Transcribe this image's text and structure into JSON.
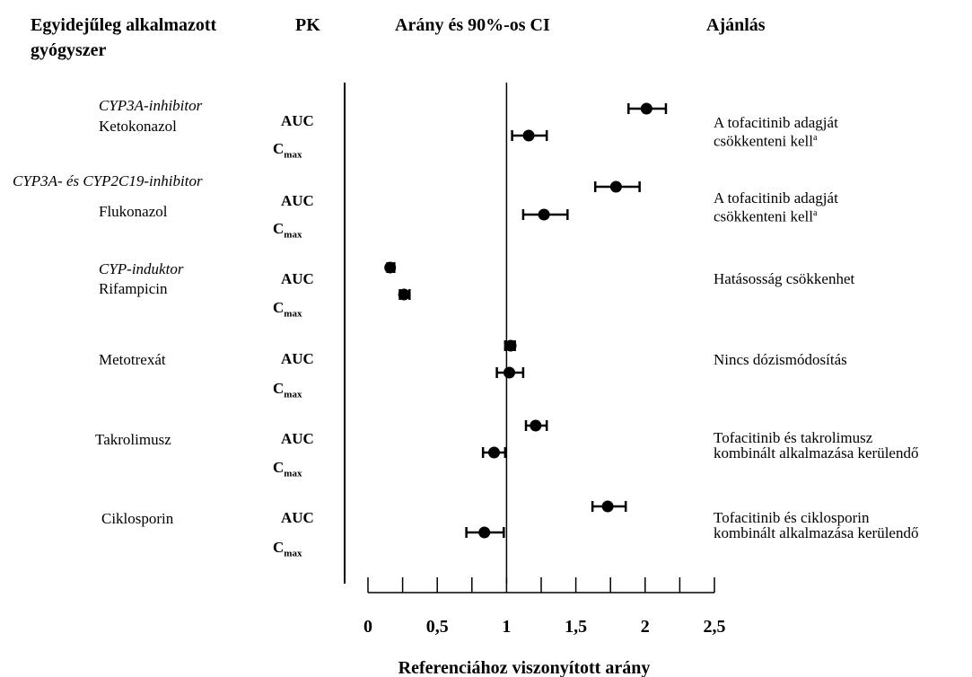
{
  "header": {
    "col_drug": "Egyidejűleg alkalmazott",
    "col_drug2": "gyógyszer",
    "col_pk": "PK",
    "col_ratio": "Arány és 90%-os CI",
    "col_rec": "Ajánlás"
  },
  "rows": [
    {
      "inhibitor": "CYP3A-inhibitor",
      "drug": "Ketokonazol",
      "recommendation": "A tofacitinib adagját\ncsökkenteni kell",
      "footnote": "a"
    },
    {
      "inhibitor": "CYP3A- és CYP2C19-inhibitor",
      "drug": "Flukonazol",
      "recommendation": "A tofacitinib adagját\ncsökkenteni kell",
      "footnote": "a"
    },
    {
      "inhibitor": "CYP-induktor",
      "drug": "Rifampicin",
      "recommendation": "Hatásosság csökkenhet",
      "footnote": ""
    },
    {
      "inhibitor": "",
      "drug": "Metotrexát",
      "recommendation": "Nincs dózismódosítás",
      "footnote": ""
    },
    {
      "inhibitor": "",
      "drug": "Takrolimusz",
      "recommendation": "Tofacitinib és takrolimusz\nkombinált alkalmazása kerülendő",
      "footnote": ""
    },
    {
      "inhibitor": "",
      "drug": "Ciklosporin",
      "recommendation": "Tofacitinib és ciklosporin\nkombinált alkalmazása kerülendő",
      "footnote": ""
    }
  ],
  "pk_labels": {
    "auc": "AUC",
    "cmax_base": "C",
    "cmax_sub": "max"
  },
  "chart_data": {
    "type": "scatter",
    "xlabel": "Referenciához viszonyított arány",
    "xlim": [
      0,
      2.5
    ],
    "xticks": [
      0,
      0.5,
      1,
      1.5,
      2,
      2.5
    ],
    "xtick_labels": [
      "0",
      "0,5",
      "1",
      "1,5",
      "2",
      "2,5"
    ],
    "reference_line": 1,
    "points": [
      {
        "drug": "Ketokonazol",
        "param": "AUC",
        "ratio": 2.01,
        "lo": 1.88,
        "hi": 2.15
      },
      {
        "drug": "Ketokonazol",
        "param": "Cmax",
        "ratio": 1.16,
        "lo": 1.04,
        "hi": 1.29
      },
      {
        "drug": "Flukonazol",
        "param": "AUC",
        "ratio": 1.79,
        "lo": 1.64,
        "hi": 1.96
      },
      {
        "drug": "Flukonazol",
        "param": "Cmax",
        "ratio": 1.27,
        "lo": 1.12,
        "hi": 1.44
      },
      {
        "drug": "Rifampicin",
        "param": "AUC",
        "ratio": 0.16,
        "lo": 0.14,
        "hi": 0.19
      },
      {
        "drug": "Rifampicin",
        "param": "Cmax",
        "ratio": 0.26,
        "lo": 0.23,
        "hi": 0.3
      },
      {
        "drug": "Metotrexát",
        "param": "AUC",
        "ratio": 1.03,
        "lo": 0.99,
        "hi": 1.06
      },
      {
        "drug": "Metotrexát",
        "param": "Cmax",
        "ratio": 1.02,
        "lo": 0.93,
        "hi": 1.12
      },
      {
        "drug": "Takrolimusz",
        "param": "AUC",
        "ratio": 1.21,
        "lo": 1.14,
        "hi": 1.29
      },
      {
        "drug": "Takrolimusz",
        "param": "Cmax",
        "ratio": 0.91,
        "lo": 0.83,
        "hi": 0.99
      },
      {
        "drug": "Ciklosporin",
        "param": "AUC",
        "ratio": 1.73,
        "lo": 1.62,
        "hi": 1.86
      },
      {
        "drug": "Ciklosporin",
        "param": "Cmax",
        "ratio": 0.84,
        "lo": 0.71,
        "hi": 0.98
      }
    ]
  }
}
